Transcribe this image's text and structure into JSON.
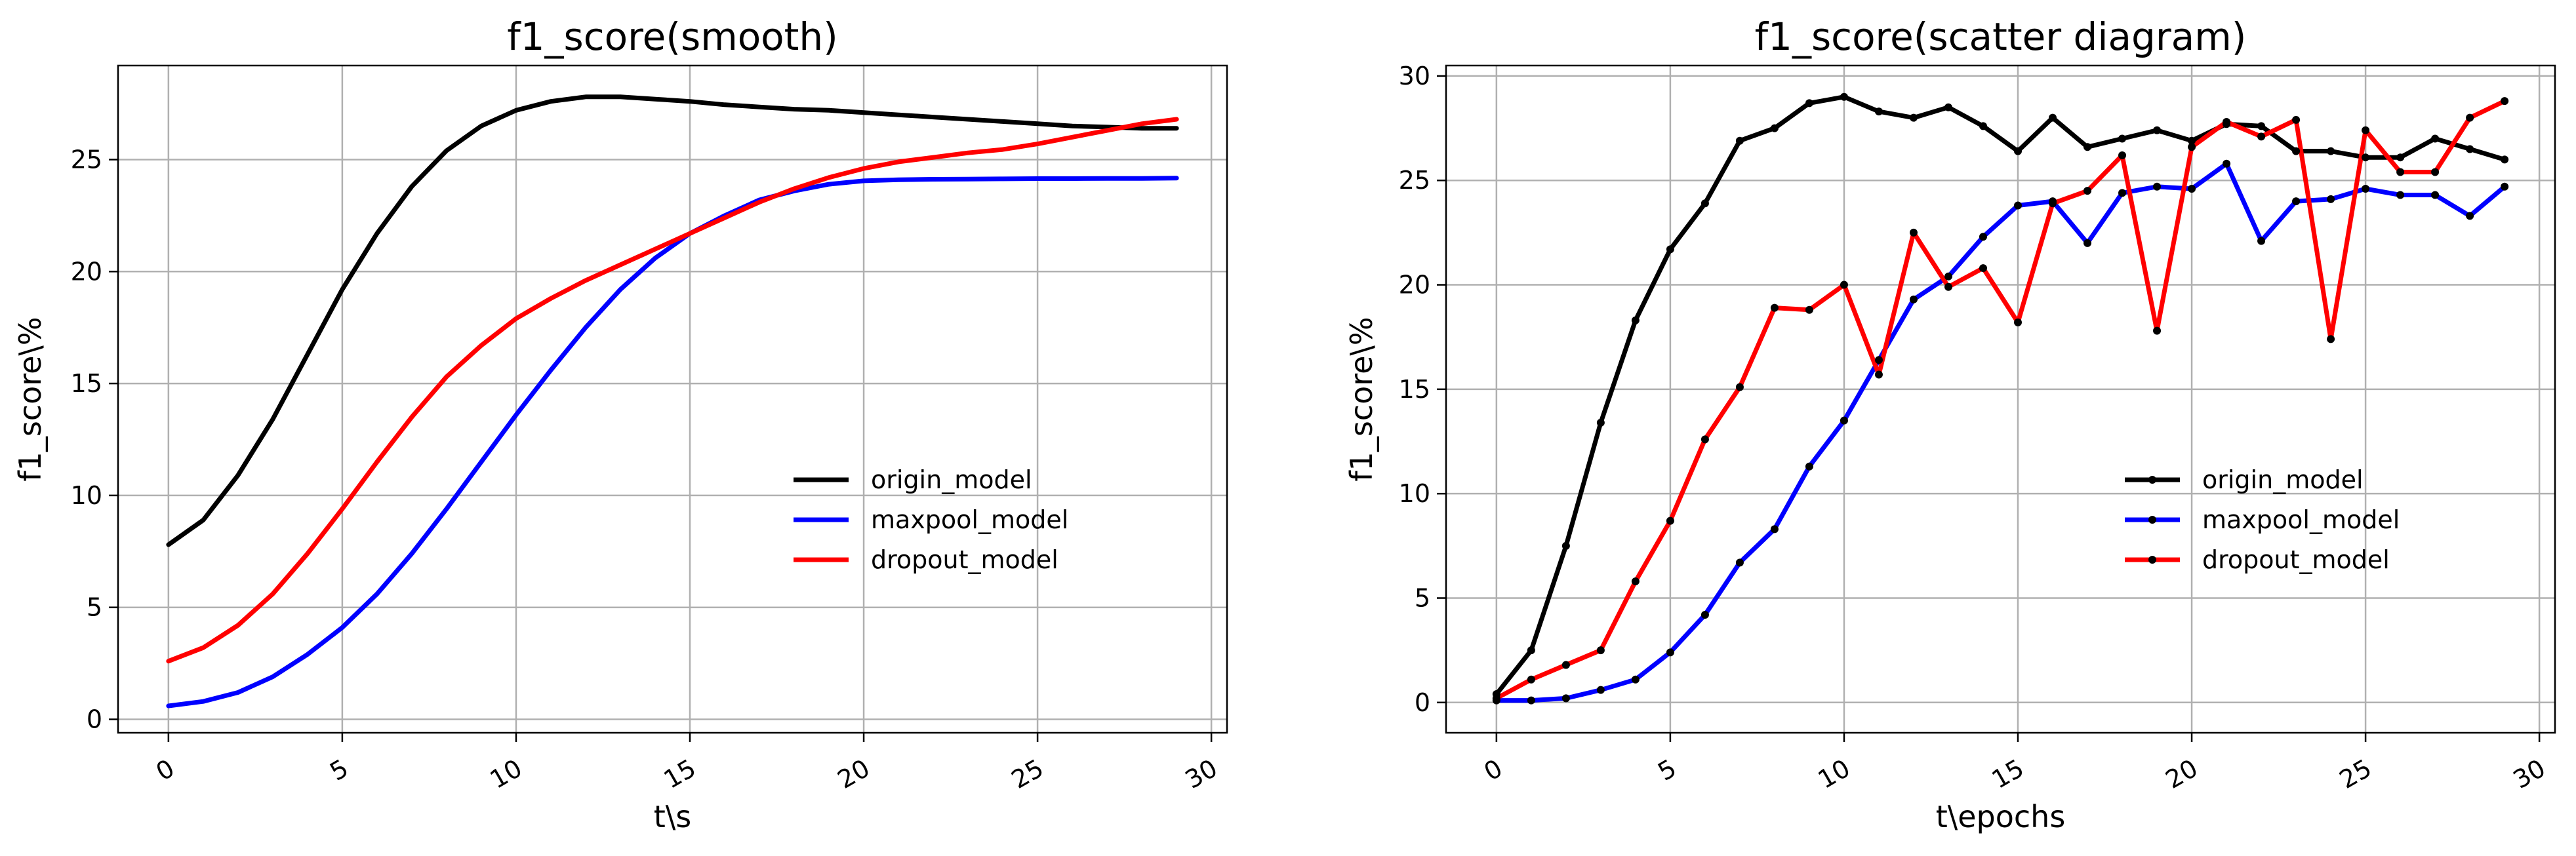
{
  "chart_data": [
    {
      "type": "line",
      "title": "f1_score(smooth)",
      "xlabel": "t\\s",
      "ylabel": "f1_score\\%",
      "xlim": [
        -1.45,
        30.45
      ],
      "ylim": [
        -0.6,
        29.2
      ],
      "xticks": [
        0,
        5,
        10,
        15,
        20,
        25,
        30
      ],
      "yticks": [
        0,
        5,
        10,
        15,
        20,
        25
      ],
      "grid": true,
      "legend": "center-right",
      "markers": false,
      "x": [
        0,
        1,
        2,
        3,
        4,
        5,
        6,
        7,
        8,
        9,
        10,
        11,
        12,
        13,
        14,
        15,
        16,
        17,
        18,
        19,
        20,
        21,
        22,
        23,
        24,
        25,
        26,
        27,
        28,
        29
      ],
      "series": [
        {
          "name": "origin_model",
          "color": "#000000",
          "values": [
            7.8,
            8.9,
            10.9,
            13.4,
            16.3,
            19.2,
            21.7,
            23.8,
            25.4,
            26.5,
            27.2,
            27.6,
            27.8,
            27.8,
            27.7,
            27.6,
            27.45,
            27.35,
            27.25,
            27.2,
            27.1,
            27.0,
            26.9,
            26.8,
            26.7,
            26.6,
            26.5,
            26.45,
            26.4,
            26.4
          ]
        },
        {
          "name": "maxpool_model",
          "color": "#0000ff",
          "values": [
            0.6,
            0.8,
            1.2,
            1.9,
            2.9,
            4.1,
            5.6,
            7.4,
            9.4,
            11.5,
            13.6,
            15.6,
            17.5,
            19.2,
            20.6,
            21.7,
            22.5,
            23.2,
            23.6,
            23.9,
            24.05,
            24.1,
            24.12,
            24.13,
            24.14,
            24.15,
            24.15,
            24.16,
            24.16,
            24.17
          ]
        },
        {
          "name": "dropout_model",
          "color": "#ff0000",
          "values": [
            2.6,
            3.2,
            4.2,
            5.6,
            7.4,
            9.4,
            11.5,
            13.5,
            15.3,
            16.7,
            17.9,
            18.8,
            19.6,
            20.3,
            21.0,
            21.7,
            22.4,
            23.1,
            23.7,
            24.2,
            24.6,
            24.9,
            25.1,
            25.3,
            25.45,
            25.7,
            26.0,
            26.3,
            26.6,
            26.8
          ]
        }
      ]
    },
    {
      "type": "line",
      "title": "f1_score(scatter diagram)",
      "xlabel": "t\\epochs",
      "ylabel": "f1_score\\%",
      "xlim": [
        -1.45,
        30.45
      ],
      "ylim": [
        -1.45,
        30.5
      ],
      "xticks": [
        0,
        5,
        10,
        15,
        20,
        25,
        30
      ],
      "yticks": [
        0,
        5,
        10,
        15,
        20,
        25,
        30
      ],
      "grid": true,
      "legend": "center-right",
      "markers": true,
      "x": [
        0,
        1,
        2,
        3,
        4,
        5,
        6,
        7,
        8,
        9,
        10,
        11,
        12,
        13,
        14,
        15,
        16,
        17,
        18,
        19,
        20,
        21,
        22,
        23,
        24,
        25,
        26,
        27,
        28,
        29
      ],
      "series": [
        {
          "name": "origin_model",
          "color": "#000000",
          "values": [
            0.4,
            2.5,
            7.5,
            13.4,
            18.3,
            21.7,
            23.9,
            26.9,
            27.5,
            28.7,
            29.0,
            28.3,
            28.0,
            28.5,
            27.6,
            26.4,
            28.0,
            26.6,
            27.0,
            27.4,
            26.9,
            27.7,
            27.6,
            26.4,
            26.4,
            26.1,
            26.1,
            27.0,
            26.5,
            26.0
          ]
        },
        {
          "name": "maxpool_model",
          "color": "#0000ff",
          "values": [
            0.1,
            0.1,
            0.2,
            0.6,
            1.1,
            2.4,
            4.2,
            6.7,
            8.3,
            11.3,
            13.5,
            16.4,
            19.3,
            20.4,
            22.3,
            23.8,
            24.0,
            22.0,
            24.4,
            24.7,
            24.6,
            25.8,
            22.1,
            24.0,
            24.1,
            24.6,
            24.3,
            24.3,
            23.3,
            24.7
          ]
        },
        {
          "name": "dropout_model",
          "color": "#ff0000",
          "values": [
            0.2,
            1.1,
            1.8,
            2.5,
            5.8,
            8.7,
            12.6,
            15.1,
            18.9,
            18.8,
            20.0,
            15.7,
            22.5,
            19.9,
            20.8,
            18.2,
            23.9,
            24.5,
            26.2,
            17.8,
            26.6,
            27.8,
            27.1,
            27.9,
            17.4,
            27.4,
            25.4,
            25.4,
            28.0,
            28.8
          ]
        }
      ]
    }
  ]
}
